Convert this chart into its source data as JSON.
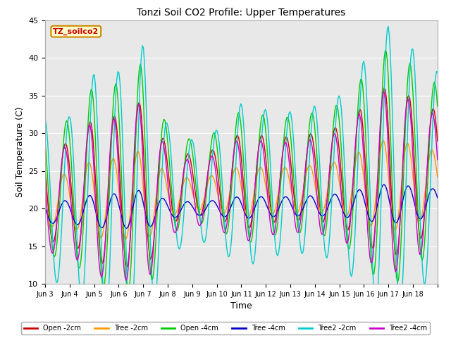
{
  "title": "Tonzi Soil CO2 Profile: Upper Temperatures",
  "xlabel": "Time",
  "ylabel": "Soil Temperature (C)",
  "ylim": [
    10,
    45
  ],
  "days": 16,
  "annotation": "TZ_soilco2",
  "annotation_color": "#cc0000",
  "annotation_bg": "#ffffcc",
  "annotation_border": "#cc8800",
  "series_labels": [
    "Open -2cm",
    "Tree -2cm",
    "Open -4cm",
    "Tree -4cm",
    "Tree2 -2cm",
    "Tree2 -4cm"
  ],
  "series_colors": [
    "#cc0000",
    "#ff9900",
    "#00cc00",
    "#0000cc",
    "#00cccc",
    "#cc00cc"
  ],
  "xtick_labels": [
    "Jun 3",
    "Jun 4",
    "Jun 5",
    "Jun 6",
    "Jun 7",
    "Jun 8",
    "Jun 9",
    "Jun 10",
    "Jun 11",
    "Jun 12",
    "Jun 13",
    "Jun 14",
    "Jun 15",
    "Jun 16",
    "Jun 17",
    "Jun 18"
  ],
  "ytick_labels": [
    10,
    15,
    20,
    25,
    30,
    35,
    40,
    45
  ],
  "plot_bg_color": "#e8e8e8",
  "grid_color": "white"
}
